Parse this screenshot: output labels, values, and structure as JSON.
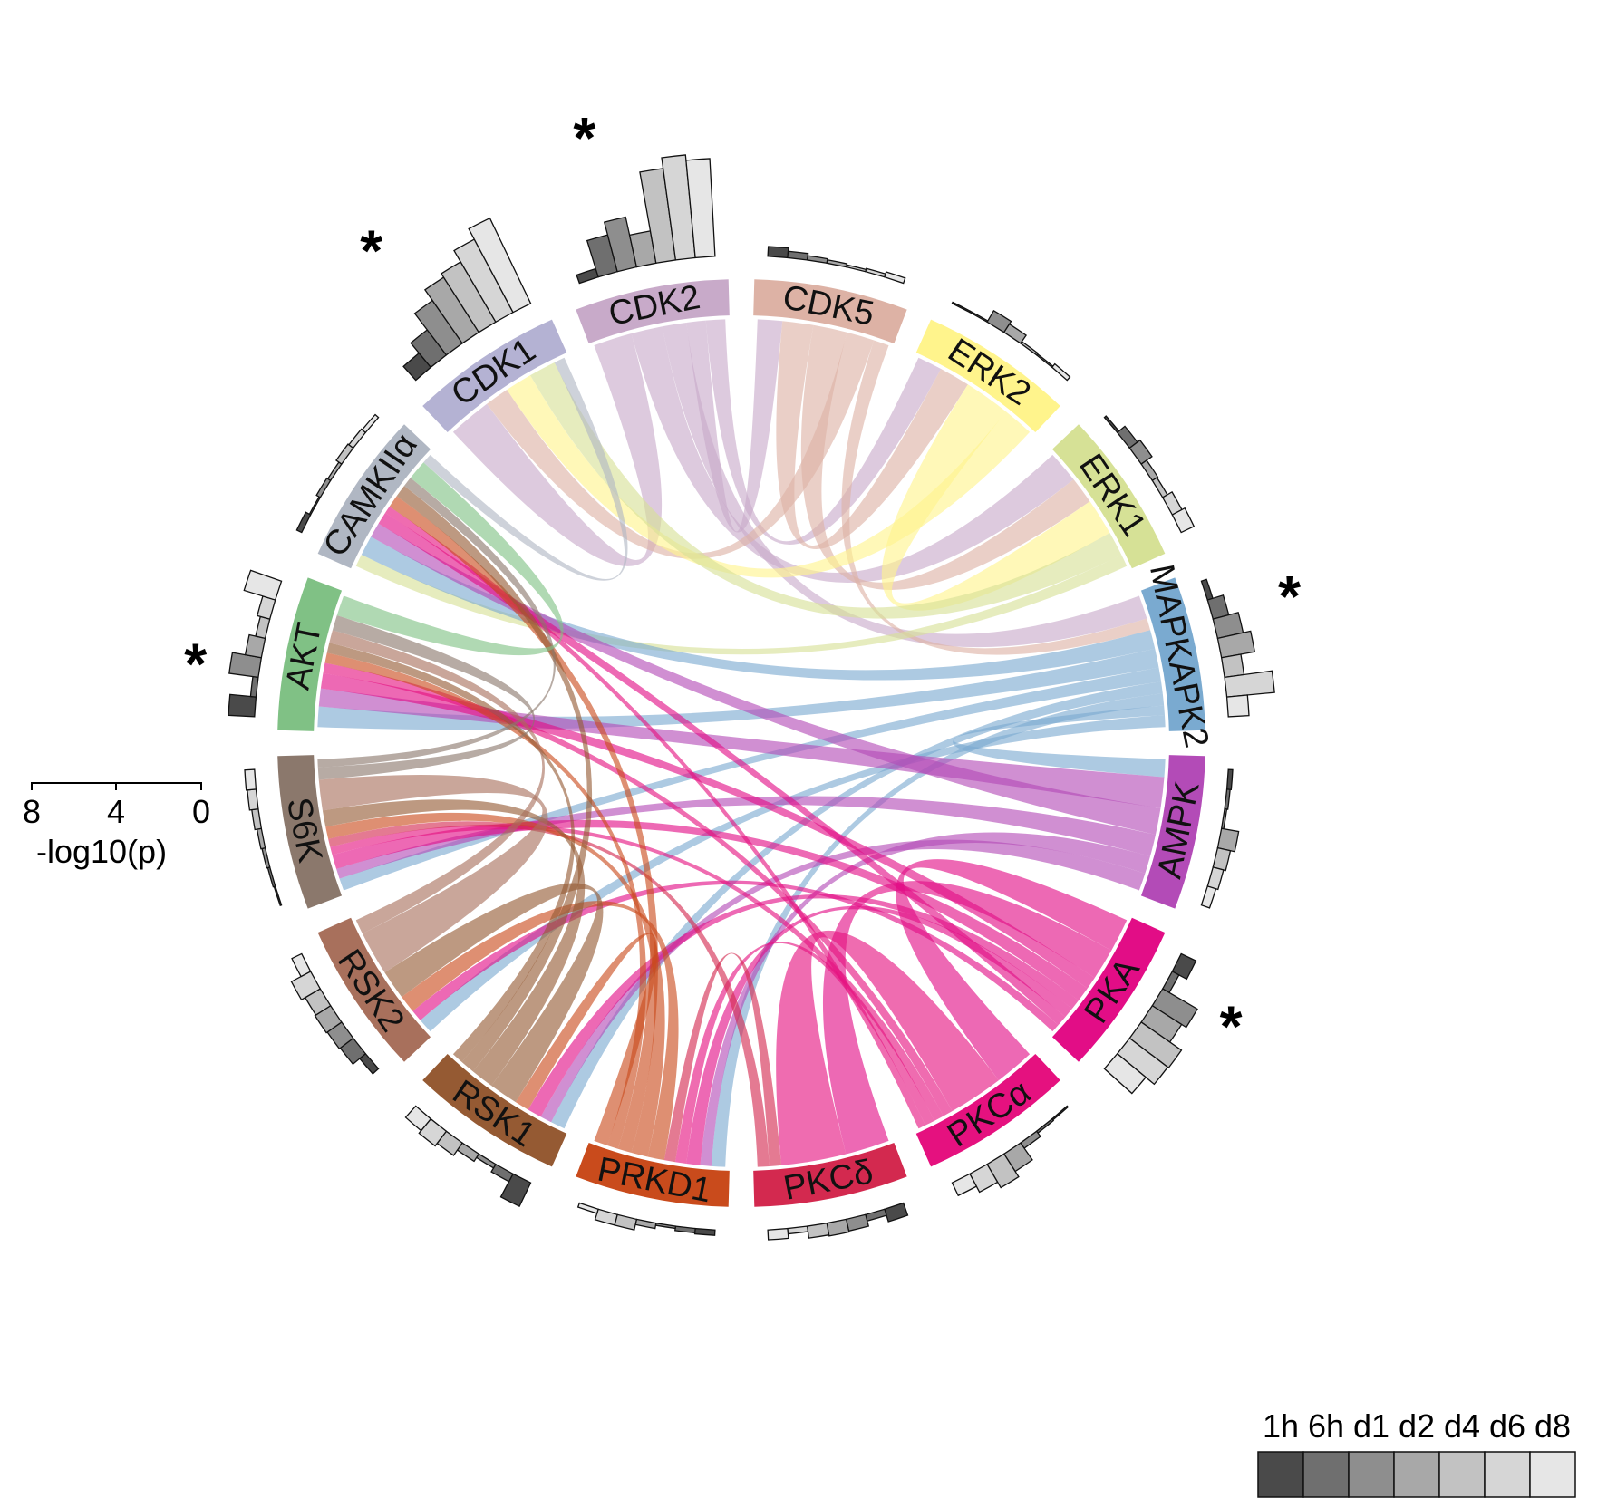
{
  "chart_data": {
    "type": "chord",
    "title": "",
    "sectors": [
      {
        "name": "CDK2",
        "color": "#c8aac9"
      },
      {
        "name": "CDK5",
        "color": "#ddb2a5"
      },
      {
        "name": "ERK2",
        "color": "#fff48c"
      },
      {
        "name": "ERK1",
        "color": "#d6e196"
      },
      {
        "name": "MAPKAPK2",
        "color": "#7aaad0"
      },
      {
        "name": "AMPK",
        "color": "#b34bb7"
      },
      {
        "name": "PKA",
        "color": "#e20d86"
      },
      {
        "name": "PKCα",
        "color": "#e5117f"
      },
      {
        "name": "PKCδ",
        "color": "#d3294f"
      },
      {
        "name": "PRKD1",
        "color": "#c94b1c"
      },
      {
        "name": "RSK1",
        "color": "#955a33"
      },
      {
        "name": "RSK2",
        "color": "#a8705c"
      },
      {
        "name": "S6K",
        "color": "#8b786c"
      },
      {
        "name": "AKT",
        "color": "#80c185"
      },
      {
        "name": "CAMKIIα",
        "color": "#b0b7c3"
      },
      {
        "name": "CDK1",
        "color": "#b4b2d3"
      }
    ],
    "timepoints": [
      "1h",
      "6h",
      "d1",
      "d2",
      "d4",
      "d6",
      "d8"
    ],
    "bar_gray_levels": [
      "#4a4a4a",
      "#6f6f6f",
      "#8e8e8e",
      "#a8a8a8",
      "#c2c2c2",
      "#d6d6d6",
      "#e6e6e6"
    ],
    "neg_log10_p": {
      "CDK2": [
        0.8,
        3.5,
        4.7,
        3.0,
        8.5,
        9.5,
        9.0
      ],
      "CDK5": [
        0.9,
        0.6,
        0.4,
        0.3,
        0.2,
        0.3,
        0.5
      ],
      "ERK2": [
        0.1,
        0.1,
        1.2,
        0.9,
        0.2,
        0.1,
        0.4
      ],
      "ERK1": [
        0.2,
        0.9,
        1.2,
        0.6,
        0.5,
        1.0,
        1.3
      ],
      "MAPKAPK2": [
        0.5,
        1.5,
        2.4,
        3.1,
        1.8,
        4.4,
        1.9
      ],
      "AMPK": [
        0.4,
        0.3,
        0.2,
        1.6,
        1.2,
        1.0,
        0.8
      ],
      "PKA": [
        1.5,
        0.7,
        3.7,
        3.2,
        4.5,
        4.4,
        3.4
      ],
      "PKCα": [
        0.1,
        0.2,
        0.6,
        1.9,
        2.5,
        1.9,
        1.3
      ],
      "PKCδ": [
        1.2,
        0.6,
        1.1,
        1.2,
        1.1,
        0.5,
        0.9
      ],
      "PRKD1": [
        0.5,
        0.4,
        0.2,
        0.5,
        1.0,
        1.0,
        0.4
      ],
      "RSK1": [
        2.4,
        0.8,
        0.4,
        0.8,
        1.4,
        1.7,
        1.4
      ],
      "RSK2": [
        0.7,
        1.5,
        1.6,
        1.7,
        1.6,
        2.0,
        1.0
      ],
      "S6K": [
        0.1,
        0.2,
        0.3,
        0.4,
        0.6,
        0.8,
        0.9
      ],
      "AKT": [
        2.4,
        0.5,
        2.7,
        1.5,
        0.9,
        1.2,
        3.0
      ],
      "CAMKIIα": [
        0.5,
        0.1,
        0.4,
        0.3,
        0.6,
        0.5,
        0.4
      ],
      "CDK1": [
        1.7,
        2.9,
        4.8,
        6.0,
        6.4,
        7.6,
        8.7
      ]
    },
    "significant": [
      "CDK2",
      "MAPKAPK2",
      "PKA",
      "AKT",
      "CDK1"
    ],
    "significance_marker": "*",
    "axis": {
      "ticks": [
        "8",
        "4",
        "0"
      ],
      "label": "-log10(p)",
      "range": [
        8,
        0
      ]
    },
    "legend": [
      "1h",
      "6h",
      "d1",
      "d2",
      "d4",
      "d6",
      "d8"
    ],
    "links": [
      [
        "CDK2",
        "CDK1",
        1.6
      ],
      [
        "CDK2",
        "ERK1",
        1.3
      ],
      [
        "CDK2",
        "MAPKAPK2",
        1.0
      ],
      [
        "CDK2",
        "CDK5",
        0.8
      ],
      [
        "CDK2",
        "ERK2",
        0.8
      ],
      [
        "CDK5",
        "ERK2",
        1.0
      ],
      [
        "CDK5",
        "ERK1",
        1.1
      ],
      [
        "CDK5",
        "CDK1",
        0.9
      ],
      [
        "CDK5",
        "MAPKAPK2",
        0.5
      ],
      [
        "ERK2",
        "ERK1",
        1.5
      ],
      [
        "ERK2",
        "CDK1",
        1.0
      ],
      [
        "ERK1",
        "CDK1",
        1.0
      ],
      [
        "ERK1",
        "CAMKIIα",
        0.5
      ],
      [
        "MAPKAPK2",
        "CAMKIIα",
        0.8
      ],
      [
        "MAPKAPK2",
        "AKT",
        0.8
      ],
      [
        "MAPKAPK2",
        "S6K",
        0.6
      ],
      [
        "MAPKAPK2",
        "RSK1",
        0.5
      ],
      [
        "MAPKAPK2",
        "PRKD1",
        0.5
      ],
      [
        "MAPKAPK2",
        "AMPK",
        0.4
      ],
      [
        "MAPKAPK2",
        "RSK2",
        0.5
      ],
      [
        "AMPK",
        "AKT",
        0.7
      ],
      [
        "AMPK",
        "CAMKIIα",
        0.6
      ],
      [
        "AMPK",
        "S6K",
        0.5
      ],
      [
        "AMPK",
        "PRKD1",
        0.4
      ],
      [
        "AMPK",
        "RSK1",
        0.4
      ],
      [
        "PKA",
        "PKCα",
        1.6
      ],
      [
        "PKA",
        "PKCδ",
        1.5
      ],
      [
        "PKA",
        "AKT",
        0.6
      ],
      [
        "PKA",
        "S6K",
        0.7
      ],
      [
        "PKA",
        "RSK1",
        0.5
      ],
      [
        "PKA",
        "PRKD1",
        0.5
      ],
      [
        "PKA",
        "CAMKIIα",
        0.5
      ],
      [
        "PKA",
        "RSK2",
        0.4
      ],
      [
        "PKCα",
        "PKCδ",
        2.2
      ],
      [
        "PKCα",
        "AKT",
        0.4
      ],
      [
        "PKCα",
        "S6K",
        0.4
      ],
      [
        "PKCα",
        "PRKD1",
        0.4
      ],
      [
        "PKCα",
        "CAMKIIα",
        0.3
      ],
      [
        "PKCδ",
        "PRKD1",
        0.4
      ],
      [
        "PKCδ",
        "S6K",
        0.4
      ],
      [
        "PRKD1",
        "RSK2",
        0.6
      ],
      [
        "PRKD1",
        "S6K",
        0.6
      ],
      [
        "PRKD1",
        "CAMKIIα",
        0.5
      ],
      [
        "PRKD1",
        "AKT",
        0.4
      ],
      [
        "PRKD1",
        "RSK1",
        0.5
      ],
      [
        "RSK1",
        "RSK2",
        1.0
      ],
      [
        "RSK1",
        "S6K",
        0.8
      ],
      [
        "RSK1",
        "CAMKIIα",
        0.5
      ],
      [
        "RSK1",
        "AKT",
        0.4
      ],
      [
        "RSK2",
        "S6K",
        1.5
      ],
      [
        "RSK2",
        "AKT",
        0.5
      ],
      [
        "S6K",
        "AKT",
        0.6
      ],
      [
        "S6K",
        "CAMKIIα",
        0.4
      ],
      [
        "AKT",
        "CAMKIIα",
        0.8
      ],
      [
        "CAMKIIα",
        "CDK1",
        0.4
      ]
    ]
  }
}
